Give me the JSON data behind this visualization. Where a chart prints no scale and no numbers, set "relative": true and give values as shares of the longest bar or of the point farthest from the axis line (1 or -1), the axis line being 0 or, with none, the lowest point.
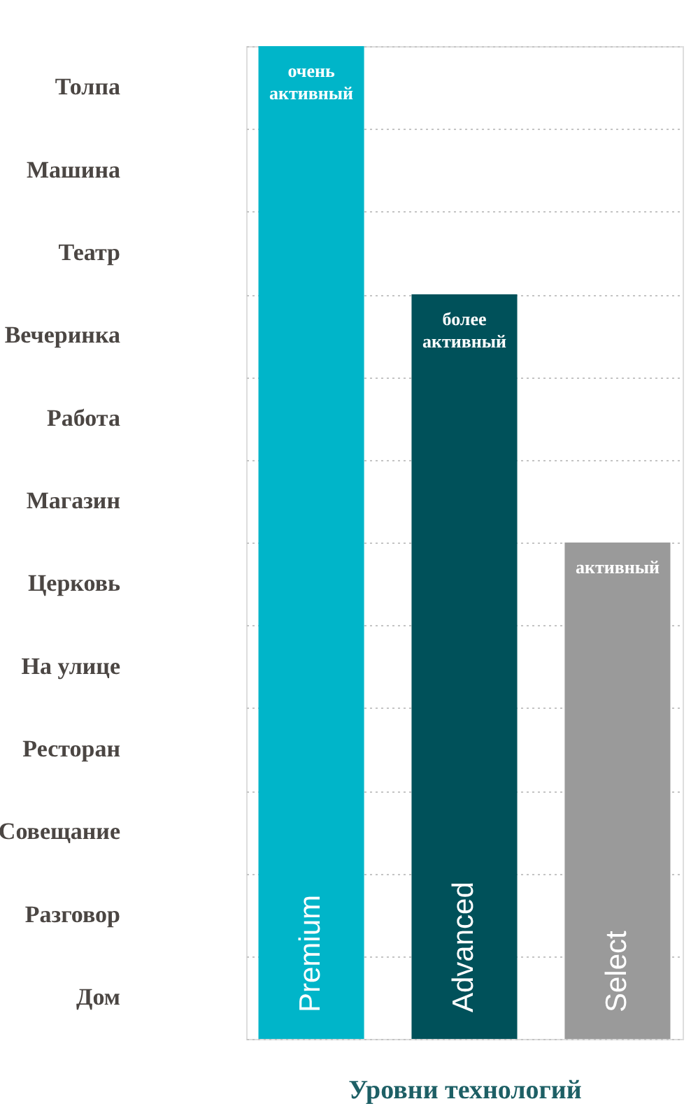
{
  "chart_data": {
    "type": "bar",
    "categories": [
      "Premium",
      "Advanced",
      "Select"
    ],
    "values": [
      1,
      0.75,
      0.5
    ],
    "relative": true,
    "colors": [
      "#00b5c9",
      "#00515a",
      "#9a9a9a"
    ],
    "xlabel": "Уровни технологий",
    "grid": "y",
    "annotations": [
      "Толпа",
      "Машина",
      "Театр",
      "Вечеринка",
      "Работа",
      "Магазин",
      "Церковь",
      "На улице",
      "Ресторан",
      "Совещание",
      "Разговор",
      "Дом",
      {
        "text": "очень активный",
        "x": "Premium",
        "y": 1
      },
      {
        "text": "более активный",
        "x": "Advanced",
        "y": 0.75
      },
      {
        "text": "активный",
        "x": "Select",
        "y": 0.5
      }
    ]
  }
}
